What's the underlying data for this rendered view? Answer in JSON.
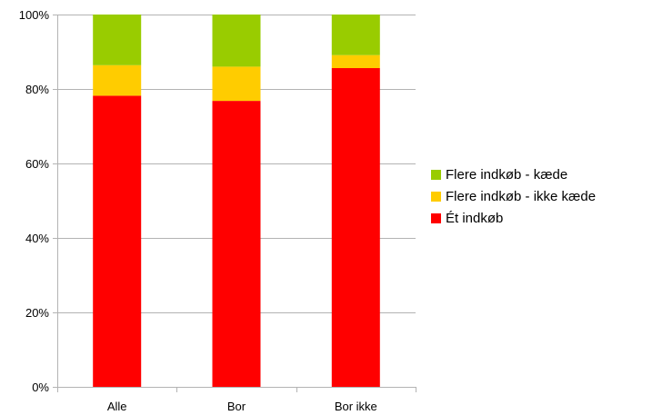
{
  "chart_data": {
    "type": "bar",
    "stacked": true,
    "percent_stacked": true,
    "categories": [
      "Alle",
      "Bor",
      "Bor ikke"
    ],
    "series": [
      {
        "name": "Ét indkøb",
        "values": [
          78.2,
          76.8,
          85.6
        ],
        "color": "#ff0000"
      },
      {
        "name": "Flere indkøb - ikke kæde",
        "values": [
          8.2,
          9.2,
          3.5
        ],
        "color": "#ffcc00"
      },
      {
        "name": "Flere indkøb - kæde",
        "values": [
          13.6,
          14.0,
          10.9
        ],
        "color": "#99cc00"
      }
    ],
    "y_ticks": [
      "0%",
      "20%",
      "40%",
      "60%",
      "80%",
      "100%"
    ],
    "ylim": [
      0,
      100
    ],
    "grid": true,
    "legend_position": "right",
    "legend_order": [
      "Flere indkøb - kæde",
      "Flere indkøb - ikke kæde",
      "Ét indkøb"
    ]
  }
}
